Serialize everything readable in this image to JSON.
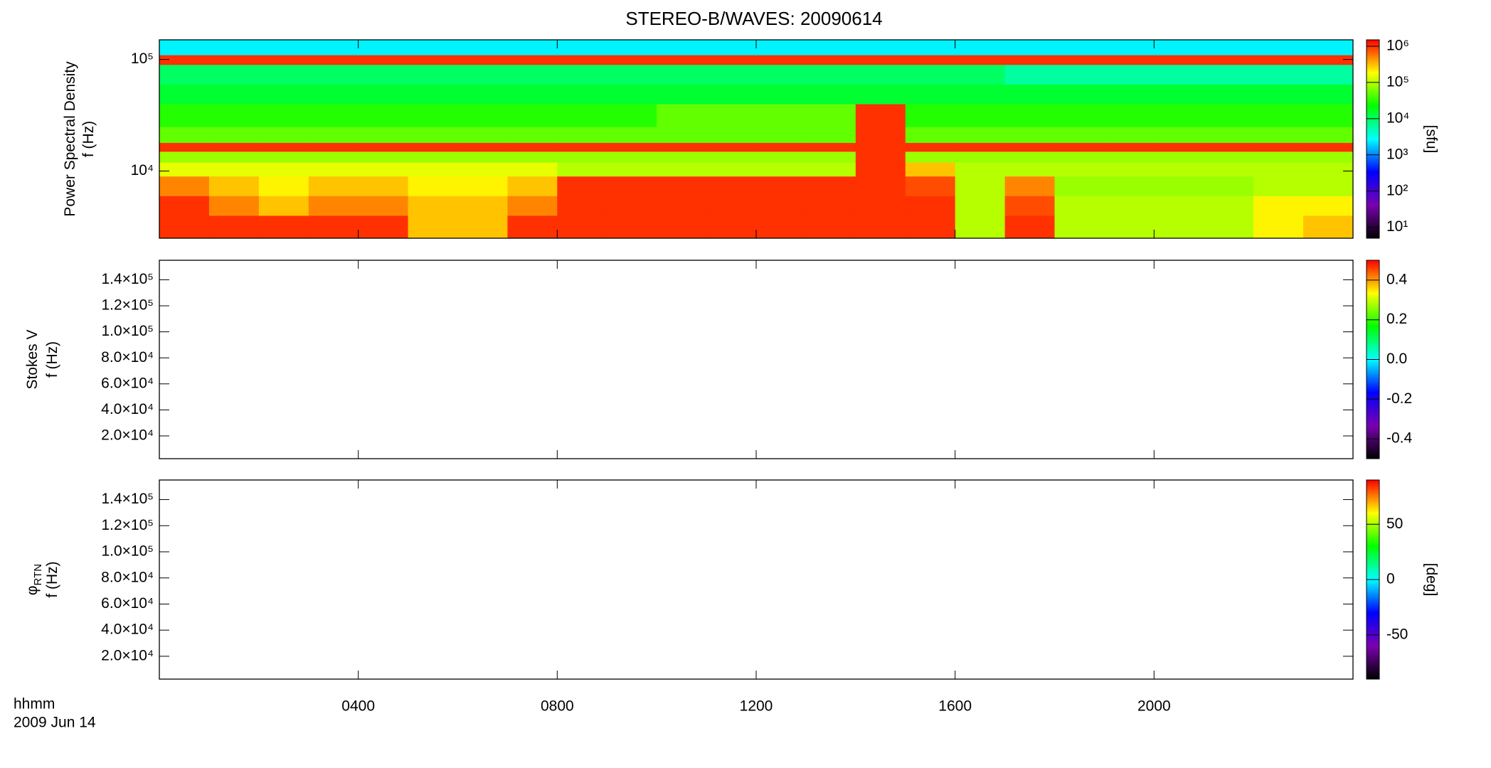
{
  "chart_data": [
    {
      "type": "spectrogram",
      "title": "STEREO-B/WAVES: 20090614",
      "ylabel": [
        "Power Spectral Density",
        "f (Hz)"
      ],
      "ylog": true,
      "ylim": [
        2500,
        150000
      ],
      "yticks": [
        {
          "value": 10000,
          "label": "10⁴"
        },
        {
          "value": 100000,
          "label": "10⁵"
        }
      ],
      "clog": true,
      "clim": [
        5,
        1500000
      ],
      "cticks": [
        {
          "value": 10,
          "label": "10¹"
        },
        {
          "value": 100,
          "label": "10²"
        },
        {
          "value": 1000,
          "label": "10³"
        },
        {
          "value": 10000,
          "label": "10⁴"
        },
        {
          "value": 100000,
          "label": "10⁵"
        },
        {
          "value": 1000000,
          "label": "10⁶"
        }
      ],
      "clabel": "[sfu]",
      "colormap": [
        "#000000",
        "#7a00b0",
        "#0000ff",
        "#00ffff",
        "#00ff00",
        "#ffff00",
        "#ff0000"
      ],
      "time_edges": [
        0,
        1,
        2,
        3,
        4,
        5,
        6,
        7,
        8,
        9,
        10,
        11,
        12,
        13,
        14,
        15,
        16,
        17,
        18,
        19,
        20,
        21,
        22,
        23,
        24
      ],
      "freq_edges": [
        2500,
        4000,
        6000,
        9000,
        12000,
        15000,
        18000,
        25000,
        40000,
        60000,
        90000,
        110000,
        150000
      ],
      "values": [
        [
          1000000,
          1000000,
          1000000,
          1000000,
          1000000,
          300000,
          300000,
          1000000,
          1000000,
          1000000,
          1000000,
          1000000,
          1000000,
          1000000,
          1000000,
          1000000,
          100000,
          1000000,
          100000,
          100000,
          100000,
          100000,
          200000,
          300000
        ],
        [
          1000000,
          500000,
          300000,
          500000,
          500000,
          300000,
          300000,
          500000,
          1000000,
          1000000,
          1000000,
          1000000,
          1000000,
          1000000,
          1000000,
          1000000,
          100000,
          800000,
          100000,
          100000,
          100000,
          100000,
          200000,
          200000
        ],
        [
          500000,
          300000,
          200000,
          300000,
          300000,
          200000,
          200000,
          300000,
          1000000,
          1000000,
          1000000,
          1000000,
          1000000,
          1000000,
          1000000,
          800000,
          100000,
          500000,
          80000,
          80000,
          80000,
          80000,
          100000,
          100000
        ],
        [
          150000,
          150000,
          150000,
          150000,
          150000,
          150000,
          150000,
          150000,
          100000,
          100000,
          100000,
          100000,
          100000,
          100000,
          1000000,
          300000,
          100000,
          100000,
          100000,
          100000,
          100000,
          100000,
          100000,
          100000
        ],
        [
          80000,
          80000,
          80000,
          80000,
          80000,
          80000,
          80000,
          80000,
          80000,
          80000,
          80000,
          80000,
          80000,
          80000,
          1000000,
          80000,
          80000,
          80000,
          80000,
          80000,
          80000,
          80000,
          80000,
          80000
        ],
        [
          1000000,
          1000000,
          1000000,
          1000000,
          1000000,
          1000000,
          1000000,
          1000000,
          1000000,
          1000000,
          1000000,
          1000000,
          1000000,
          1000000,
          1000000,
          1000000,
          1000000,
          1000000,
          1000000,
          1000000,
          1000000,
          1000000,
          1000000,
          1000000
        ],
        [
          50000,
          50000,
          50000,
          50000,
          50000,
          50000,
          50000,
          50000,
          50000,
          50000,
          50000,
          50000,
          50000,
          50000,
          1000000,
          50000,
          50000,
          50000,
          50000,
          50000,
          50000,
          50000,
          50000,
          50000
        ],
        [
          30000,
          30000,
          30000,
          30000,
          30000,
          30000,
          30000,
          30000,
          30000,
          30000,
          50000,
          50000,
          50000,
          50000,
          1000000,
          30000,
          30000,
          30000,
          30000,
          30000,
          30000,
          30000,
          30000,
          30000
        ],
        [
          15000,
          15000,
          15000,
          15000,
          15000,
          15000,
          15000,
          15000,
          15000,
          15000,
          15000,
          15000,
          15000,
          15000,
          15000,
          15000,
          15000,
          15000,
          15000,
          15000,
          15000,
          15000,
          15000,
          15000
        ],
        [
          10000,
          10000,
          10000,
          10000,
          10000,
          10000,
          10000,
          10000,
          10000,
          10000,
          10000,
          10000,
          10000,
          10000,
          10000,
          10000,
          10000,
          6000,
          6000,
          6000,
          6000,
          6000,
          6000,
          6000
        ],
        [
          1000000,
          1000000,
          1000000,
          1000000,
          1000000,
          1000000,
          1000000,
          1000000,
          1000000,
          1000000,
          1000000,
          1000000,
          1000000,
          1000000,
          1000000,
          1000000,
          1000000,
          1000000,
          1000000,
          1000000,
          1000000,
          1000000,
          1000000,
          1000000
        ],
        [
          2500,
          2500,
          2500,
          2500,
          2500,
          2500,
          2500,
          2500,
          2500,
          2500,
          2500,
          2500,
          2500,
          2500,
          2500,
          2500,
          2500,
          2500,
          2500,
          2500,
          2500,
          2500,
          2500,
          2500
        ]
      ]
    },
    {
      "type": "spectrogram",
      "ylabel": [
        "Stokes V",
        "f (Hz)"
      ],
      "ylim": [
        2500,
        155000
      ],
      "yticks": [
        {
          "value": 20000,
          "label": "2.0×10⁴"
        },
        {
          "value": 40000,
          "label": "4.0×10⁴"
        },
        {
          "value": 60000,
          "label": "6.0×10⁴"
        },
        {
          "value": 80000,
          "label": "8.0×10⁴"
        },
        {
          "value": 100000,
          "label": "1.0×10⁵"
        },
        {
          "value": 120000,
          "label": "1.2×10⁵"
        },
        {
          "value": 140000,
          "label": "1.4×10⁵"
        }
      ],
      "clim": [
        -0.5,
        0.5
      ],
      "cticks": [
        -0.4,
        -0.2,
        {
          "value": 0,
          "label": "0.0"
        },
        0.2,
        0.4
      ],
      "colormap": [
        "#000000",
        "#7a00b0",
        "#0000ff",
        "#00ffff",
        "#00ff00",
        "#ffff00",
        "#ff0000"
      ]
    },
    {
      "type": "spectrogram",
      "ylabel": [
        "φ",
        "f (Hz)"
      ],
      "ylabel_subscript": "RTN",
      "ylim": [
        2500,
        155000
      ],
      "yticks": [
        {
          "value": 20000,
          "label": "2.0×10⁴"
        },
        {
          "value": 40000,
          "label": "4.0×10⁴"
        },
        {
          "value": 60000,
          "label": "6.0×10⁴"
        },
        {
          "value": 80000,
          "label": "8.0×10⁴"
        },
        {
          "value": 100000,
          "label": "1.0×10⁵"
        },
        {
          "value": 120000,
          "label": "1.2×10⁵"
        },
        {
          "value": 140000,
          "label": "1.4×10⁵"
        }
      ],
      "clim": [
        -90,
        90
      ],
      "cticks": [
        -50,
        0,
        50
      ],
      "clabel": "[deg]",
      "colormap": [
        "#000000",
        "#7a00b0",
        "#0000ff",
        "#00ffff",
        "#00ff00",
        "#ffff00",
        "#ff0000"
      ],
      "xlim": [
        0,
        24
      ],
      "xticks": [
        {
          "value": 4,
          "label": "0400"
        },
        {
          "value": 8,
          "label": "0800"
        },
        {
          "value": 12,
          "label": "1200"
        },
        {
          "value": 16,
          "label": "1600"
        },
        {
          "value": 20,
          "label": "2000"
        }
      ],
      "xlabel": "hhmm",
      "date": "2009 Jun 14"
    }
  ]
}
